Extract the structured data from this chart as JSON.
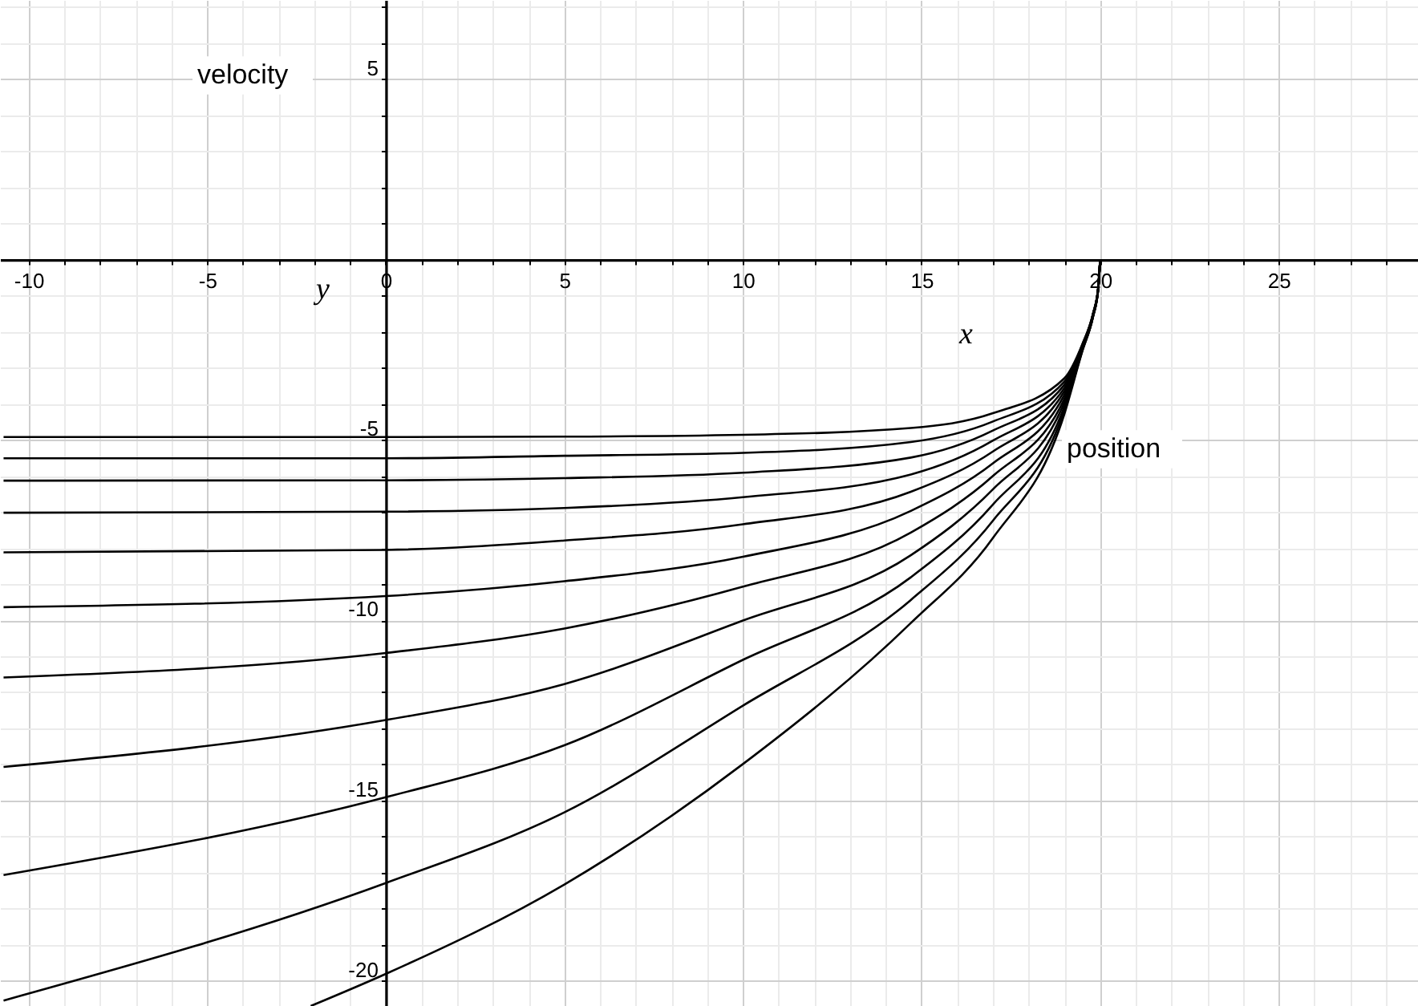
{
  "chart_data": {
    "type": "line",
    "xlabel": "x",
    "ylabel": "y",
    "annotations": [
      "velocity",
      "position"
    ],
    "x": [
      -10.7,
      0,
      5,
      10,
      14.7,
      17,
      19,
      19.5,
      19.8,
      19.95,
      20
    ],
    "series": [
      {
        "color": "#000000",
        "values": [
          -4.92,
          -4.92,
          -4.91,
          -4.86,
          -4.67,
          -4.26,
          -3.29,
          -2.35,
          -1.5,
          -0.75,
          0
        ]
      },
      {
        "color": "#000000",
        "values": [
          -5.51,
          -5.51,
          -5.44,
          -5.36,
          -5.06,
          -4.49,
          -3.38,
          -2.37,
          -1.51,
          -0.76,
          0
        ]
      },
      {
        "color": "#000000",
        "values": [
          -6.13,
          -6.12,
          -6.06,
          -5.91,
          -5.49,
          -4.74,
          -3.47,
          -2.39,
          -1.52,
          -0.76,
          0
        ]
      },
      {
        "color": "#000000",
        "values": [
          -7.02,
          -6.99,
          -6.89,
          -6.59,
          -5.96,
          -5.02,
          -3.56,
          -2.41,
          -1.53,
          -0.77,
          0
        ]
      },
      {
        "color": "#000000",
        "values": [
          -8.12,
          -8.05,
          -7.79,
          -7.34,
          -6.44,
          -5.32,
          -3.65,
          -2.43,
          -1.54,
          -0.77,
          0
        ]
      },
      {
        "color": "#000000",
        "values": [
          -9.64,
          -9.33,
          -8.92,
          -8.24,
          -6.97,
          -5.65,
          -3.75,
          -2.45,
          -1.55,
          -0.78,
          0
        ]
      },
      {
        "color": "#000000",
        "values": [
          -11.59,
          -10.91,
          -10.23,
          -9.07,
          -7.57,
          -6.0,
          -3.86,
          -2.47,
          -1.56,
          -0.78,
          0
        ]
      },
      {
        "color": "#000000",
        "values": [
          -14.07,
          -12.77,
          -11.77,
          -10.01,
          -8.2,
          -6.37,
          -3.96,
          -2.49,
          -1.57,
          -0.79,
          0
        ]
      },
      {
        "color": "#000000",
        "values": [
          -17.07,
          -14.91,
          -13.47,
          -11.1,
          -8.81,
          -6.79,
          -4.07,
          -2.51,
          -1.58,
          -0.79,
          0
        ]
      },
      {
        "color": "#000000",
        "values": [
          -20.55,
          -17.29,
          -15.33,
          -12.37,
          -9.44,
          -7.24,
          -4.17,
          -2.53,
          -1.59,
          -0.8,
          0
        ]
      },
      {
        "color": "#000000",
        "x": [
          -2.1,
          0,
          5,
          10,
          14.7,
          17,
          19,
          19.5,
          19.8,
          19.95,
          20
        ],
        "values": [
          -20.7,
          -19.81,
          -17.33,
          -13.99,
          -10.08,
          -7.72,
          -4.28,
          -2.55,
          -1.6,
          -0.8,
          0
        ]
      }
    ],
    "xlim": [
      -10.8,
      28.9
    ],
    "ylim": [
      -20.7,
      7.2
    ],
    "xticks": [
      -10,
      {
        "value": -9,
        "label": null
      },
      {
        "value": -8,
        "label": null
      },
      {
        "value": -7,
        "label": null
      },
      {
        "value": -6,
        "label": null
      },
      -5,
      {
        "value": -4,
        "label": null
      },
      {
        "value": -3,
        "label": null
      },
      {
        "value": -2,
        "label": null
      },
      {
        "value": -1,
        "label": null
      },
      0,
      {
        "value": 1,
        "label": null
      },
      {
        "value": 2,
        "label": null
      },
      {
        "value": 3,
        "label": null
      },
      {
        "value": 4,
        "label": null
      },
      5,
      {
        "value": 6,
        "label": null
      },
      {
        "value": 7,
        "label": null
      },
      {
        "value": 8,
        "label": null
      },
      {
        "value": 9,
        "label": null
      },
      10,
      {
        "value": 11,
        "label": null
      },
      {
        "value": 12,
        "label": null
      },
      {
        "value": 13,
        "label": null
      },
      {
        "value": 14,
        "label": null
      },
      15,
      {
        "value": 16,
        "label": null
      },
      {
        "value": 17,
        "label": null
      },
      {
        "value": 18,
        "label": null
      },
      {
        "value": 19,
        "label": null
      },
      20,
      {
        "value": 21,
        "label": null
      },
      {
        "value": 22,
        "label": null
      },
      {
        "value": 23,
        "label": null
      },
      {
        "value": 24,
        "label": null
      },
      25,
      {
        "value": 26,
        "label": null
      },
      {
        "value": 27,
        "label": null
      },
      {
        "value": 28,
        "label": null
      }
    ],
    "yticks": [
      -20,
      {
        "value": -19,
        "label": null
      },
      {
        "value": -18,
        "label": null
      },
      {
        "value": -17,
        "label": null
      },
      {
        "value": -16,
        "label": null
      },
      -15,
      {
        "value": -14,
        "label": null
      },
      {
        "value": -13,
        "label": null
      },
      {
        "value": -12,
        "label": null
      },
      {
        "value": -11,
        "label": null
      },
      -10,
      {
        "value": -9,
        "label": null
      },
      {
        "value": -8,
        "label": null
      },
      {
        "value": -7,
        "label": null
      },
      {
        "value": -6,
        "label": null
      },
      -5,
      {
        "value": -4,
        "label": null
      },
      {
        "value": -3,
        "label": null
      },
      {
        "value": -2,
        "label": null
      },
      {
        "value": -1,
        "label": null
      },
      {
        "value": 0,
        "label": null
      },
      {
        "value": 1,
        "label": null
      },
      {
        "value": 2,
        "label": null
      },
      {
        "value": 3,
        "label": null
      },
      {
        "value": 4,
        "label": null
      },
      5,
      {
        "value": 6,
        "label": null
      },
      {
        "value": 7,
        "label": null
      }
    ],
    "grid": true,
    "marker": "none",
    "line_style": "solid"
  }
}
